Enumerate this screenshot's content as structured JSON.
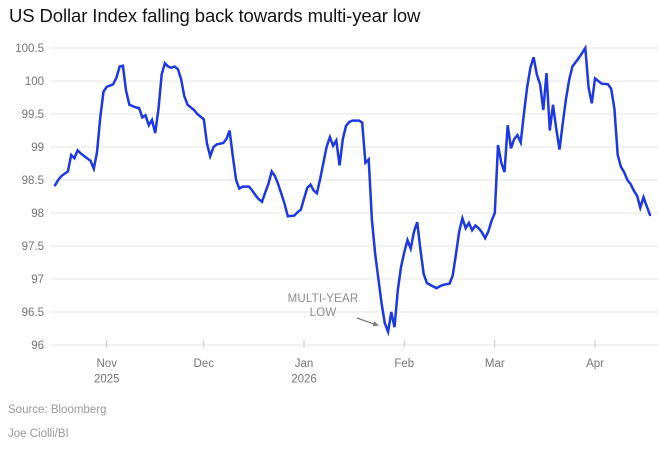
{
  "title": "US Dollar Index falling back towards multi-year low",
  "annotation": {
    "line1": "MULTI-YEAR",
    "line2": "LOW"
  },
  "source_line": "Source: Bloomberg",
  "byline": "Joe Ciolli/BI",
  "colors": {
    "line": "#1c38e2",
    "grid": "#e4e4e4",
    "tick": "#c9c9c9",
    "axis_text": "#757575",
    "title_text": "#141414",
    "annotation_text": "#8c8c8c",
    "source_text": "#999999",
    "arrow": "#7a7a7a"
  },
  "chart_data": {
    "type": "line",
    "title": "US Dollar Index falling back towards multi-year low",
    "xlabel": "",
    "ylabel": "",
    "ylim": [
      96,
      100.5
    ],
    "grid": true,
    "legend": "none",
    "y_ticks": [
      {
        "label": "100.5",
        "value": 100.5
      },
      {
        "label": "100",
        "value": 100
      },
      {
        "label": "99.5",
        "value": 99.5
      },
      {
        "label": "99",
        "value": 99
      },
      {
        "label": "98.5",
        "value": 98.5
      },
      {
        "label": "98",
        "value": 98
      },
      {
        "label": "97.5",
        "value": 97.5
      },
      {
        "label": "97",
        "value": 97
      },
      {
        "label": "96.5",
        "value": 96.5
      },
      {
        "label": "96",
        "value": 96
      }
    ],
    "x_domain_days": [
      0,
      184
    ],
    "x_ticks": [
      {
        "label": "Nov",
        "sublabel": "2025",
        "day": 16
      },
      {
        "label": "Dec",
        "sublabel": "",
        "day": 46
      },
      {
        "label": "Jan",
        "sublabel": "2026",
        "day": 77
      },
      {
        "label": "Feb",
        "sublabel": "",
        "day": 108
      },
      {
        "label": "Mar",
        "sublabel": "",
        "day": 136
      },
      {
        "label": "Apr",
        "sublabel": "",
        "day": 167
      }
    ],
    "annotation": {
      "text": "MULTI-YEAR LOW",
      "points_to_day": 103,
      "points_to_value": 96.2
    },
    "series": [
      {
        "name": "US Dollar Index",
        "points": [
          [
            0,
            98.42
          ],
          [
            1,
            98.5
          ],
          [
            2,
            98.56
          ],
          [
            4,
            98.63
          ],
          [
            5,
            98.88
          ],
          [
            6,
            98.83
          ],
          [
            7,
            98.95
          ],
          [
            8,
            98.9
          ],
          [
            11,
            98.79
          ],
          [
            12,
            98.67
          ],
          [
            13,
            98.92
          ],
          [
            14,
            99.45
          ],
          [
            15,
            99.84
          ],
          [
            16,
            99.91
          ],
          [
            18,
            99.95
          ],
          [
            19,
            100.05
          ],
          [
            20,
            100.22
          ],
          [
            21,
            100.23
          ],
          [
            22,
            99.85
          ],
          [
            23,
            99.64
          ],
          [
            25,
            99.6
          ],
          [
            26,
            99.59
          ],
          [
            27,
            99.45
          ],
          [
            28,
            99.48
          ],
          [
            29,
            99.33
          ],
          [
            30,
            99.41
          ],
          [
            31,
            99.21
          ],
          [
            32,
            99.58
          ],
          [
            33,
            100.1
          ],
          [
            34,
            100.27
          ],
          [
            35,
            100.22
          ],
          [
            36,
            100.2
          ],
          [
            37,
            100.22
          ],
          [
            38,
            100.18
          ],
          [
            39,
            100.03
          ],
          [
            40,
            99.77
          ],
          [
            41,
            99.64
          ],
          [
            43,
            99.56
          ],
          [
            44,
            99.5
          ],
          [
            45,
            99.46
          ],
          [
            46,
            99.42
          ],
          [
            47,
            99.05
          ],
          [
            48,
            98.86
          ],
          [
            49,
            99.0
          ],
          [
            50,
            99.04
          ],
          [
            52,
            99.06
          ],
          [
            53,
            99.12
          ],
          [
            54,
            99.25
          ],
          [
            55,
            98.85
          ],
          [
            56,
            98.5
          ],
          [
            57,
            98.37
          ],
          [
            58,
            98.4
          ],
          [
            60,
            98.4
          ],
          [
            61,
            98.34
          ],
          [
            62,
            98.27
          ],
          [
            63,
            98.21
          ],
          [
            64,
            98.17
          ],
          [
            65,
            98.31
          ],
          [
            66,
            98.44
          ],
          [
            67,
            98.63
          ],
          [
            68,
            98.56
          ],
          [
            69,
            98.44
          ],
          [
            70,
            98.29
          ],
          [
            71,
            98.14
          ],
          [
            72,
            97.95
          ],
          [
            74,
            97.96
          ],
          [
            75,
            98.01
          ],
          [
            76,
            98.05
          ],
          [
            78,
            98.38
          ],
          [
            79,
            98.43
          ],
          [
            80,
            98.34
          ],
          [
            81,
            98.3
          ],
          [
            82,
            98.52
          ],
          [
            83,
            98.76
          ],
          [
            84,
            99.0
          ],
          [
            85,
            99.15
          ],
          [
            86,
            99.02
          ],
          [
            87,
            99.1
          ],
          [
            88,
            98.72
          ],
          [
            89,
            99.12
          ],
          [
            90,
            99.32
          ],
          [
            91,
            99.38
          ],
          [
            92,
            99.4
          ],
          [
            94,
            99.4
          ],
          [
            95,
            99.37
          ],
          [
            96,
            98.76
          ],
          [
            97,
            98.81
          ],
          [
            98,
            97.9
          ],
          [
            99,
            97.39
          ],
          [
            100,
            97.0
          ],
          [
            101,
            96.63
          ],
          [
            102,
            96.33
          ],
          [
            103,
            96.2
          ],
          [
            104,
            96.5
          ],
          [
            105,
            96.27
          ],
          [
            106,
            96.83
          ],
          [
            107,
            97.18
          ],
          [
            108,
            97.4
          ],
          [
            109,
            97.59
          ],
          [
            110,
            97.46
          ],
          [
            111,
            97.71
          ],
          [
            112,
            97.86
          ],
          [
            113,
            97.45
          ],
          [
            114,
            97.08
          ],
          [
            115,
            96.94
          ],
          [
            116,
            96.91
          ],
          [
            118,
            96.86
          ],
          [
            119,
            96.89
          ],
          [
            120,
            96.91
          ],
          [
            122,
            96.93
          ],
          [
            123,
            97.05
          ],
          [
            124,
            97.38
          ],
          [
            125,
            97.72
          ],
          [
            126,
            97.92
          ],
          [
            127,
            97.77
          ],
          [
            128,
            97.85
          ],
          [
            129,
            97.74
          ],
          [
            130,
            97.81
          ],
          [
            131,
            97.77
          ],
          [
            132,
            97.71
          ],
          [
            133,
            97.62
          ],
          [
            134,
            97.72
          ],
          [
            135,
            97.88
          ],
          [
            136,
            98.0
          ],
          [
            137,
            99.03
          ],
          [
            138,
            98.76
          ],
          [
            139,
            98.62
          ],
          [
            140,
            99.33
          ],
          [
            141,
            98.98
          ],
          [
            142,
            99.12
          ],
          [
            143,
            99.18
          ],
          [
            144,
            99.07
          ],
          [
            145,
            99.5
          ],
          [
            146,
            99.9
          ],
          [
            147,
            100.2
          ],
          [
            148,
            100.36
          ],
          [
            149,
            100.1
          ],
          [
            150,
            99.95
          ],
          [
            151,
            99.56
          ],
          [
            152,
            100.12
          ],
          [
            153,
            99.25
          ],
          [
            154,
            99.64
          ],
          [
            155,
            99.28
          ],
          [
            156,
            98.96
          ],
          [
            157,
            99.35
          ],
          [
            158,
            99.72
          ],
          [
            159,
            100.02
          ],
          [
            160,
            100.22
          ],
          [
            162,
            100.35
          ],
          [
            164,
            100.5
          ],
          [
            165,
            99.9
          ],
          [
            166,
            99.66
          ],
          [
            167,
            100.04
          ],
          [
            168,
            100.0
          ],
          [
            169,
            99.96
          ],
          [
            171,
            99.95
          ],
          [
            172,
            99.88
          ],
          [
            173,
            99.58
          ],
          [
            174,
            98.88
          ],
          [
            175,
            98.7
          ],
          [
            176,
            98.62
          ],
          [
            177,
            98.5
          ],
          [
            178,
            98.44
          ],
          [
            179,
            98.34
          ],
          [
            180,
            98.26
          ],
          [
            181,
            98.08
          ],
          [
            182,
            98.24
          ],
          [
            183,
            98.1
          ],
          [
            184,
            97.97
          ]
        ]
      }
    ]
  }
}
